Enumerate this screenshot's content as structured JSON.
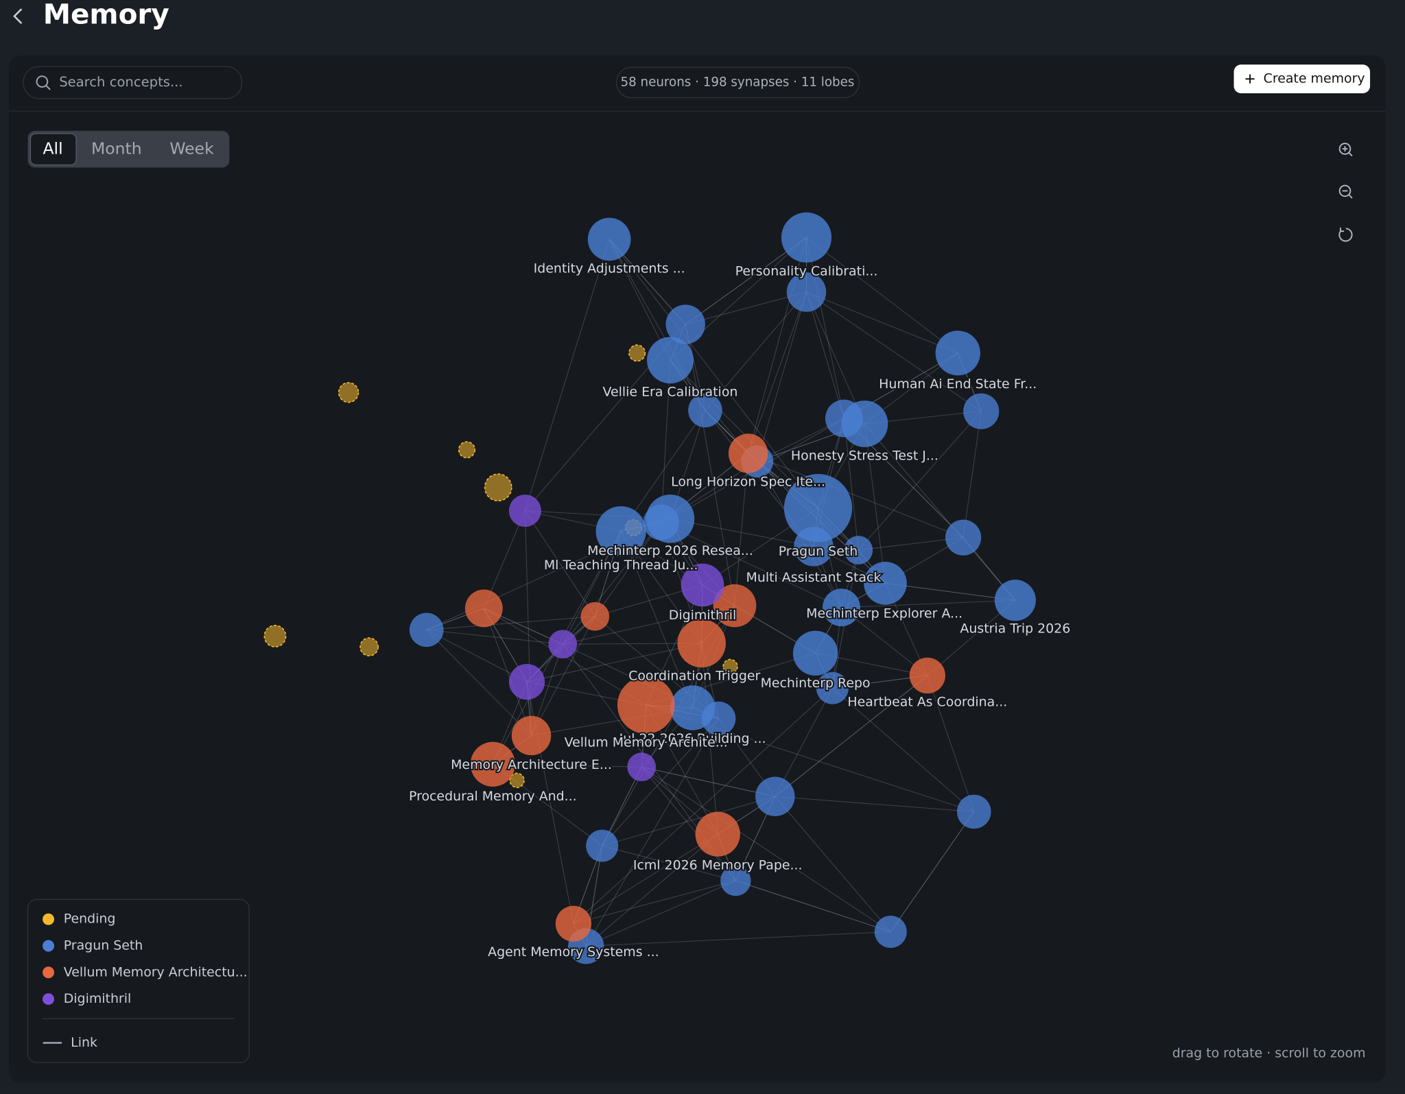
{
  "header": {
    "title": "Memory"
  },
  "toolbar": {
    "search_placeholder": "Search concepts...",
    "stats": "58 neurons · 198 synapses · 11 lobes",
    "create_button": "Create memory"
  },
  "filters": [
    "All",
    "Month",
    "Week"
  ],
  "graph": {
    "nodes": [
      {
        "label": "Identity Adjustments ...",
        "group": 1
      },
      {
        "label": "Personality Calibrati...",
        "group": 1
      },
      {
        "label": "Vellie Era Calibration",
        "group": 1
      },
      {
        "label": "Human Ai End State Fr...",
        "group": 1
      },
      {
        "label": "Honesty Stress Test J...",
        "group": 1
      },
      {
        "label": "Long Horizon Spec Ite...",
        "group": 2
      },
      {
        "label": "Mechinterp 2026 Resea...",
        "group": 1
      },
      {
        "label": "Ml Teaching Thread Ju...",
        "group": 1
      },
      {
        "label": "Pragun Seth",
        "group": 1
      },
      {
        "label": "Multi Assistant Stack",
        "group": 1
      },
      {
        "label": "Digimithril",
        "group": 3
      },
      {
        "label": "Mechinterp Explorer A...",
        "group": 1
      },
      {
        "label": "Austria Trip 2026",
        "group": 1
      },
      {
        "label": "Coordination Trigger",
        "group": 2
      },
      {
        "label": "Mechinterp Repo",
        "group": 1
      },
      {
        "label": "Heartbeat As Coordina...",
        "group": 2
      },
      {
        "label": "Jul 22 2026 Building ...",
        "group": 1
      },
      {
        "label": "Vellum Memory Archite...",
        "group": 2
      },
      {
        "label": "Memory Architecture E...",
        "group": 2
      },
      {
        "label": "Procedural Memory And...",
        "group": 2
      },
      {
        "label": "Icml 2026 Memory Pape...",
        "group": 2
      },
      {
        "label": "Agent Memory Systems ...",
        "group": 2
      }
    ]
  },
  "legend": {
    "items": [
      {
        "label": "Pending",
        "color": "#f5b82e"
      },
      {
        "label": "Pragun Seth",
        "color": "#4a7fd4"
      },
      {
        "label": "Vellum Memory Architectu...",
        "color": "#e8683f"
      },
      {
        "label": "Digimithril",
        "color": "#7c4fdc"
      }
    ],
    "link": "Link"
  },
  "hint": "drag to rotate · scroll to zoom"
}
